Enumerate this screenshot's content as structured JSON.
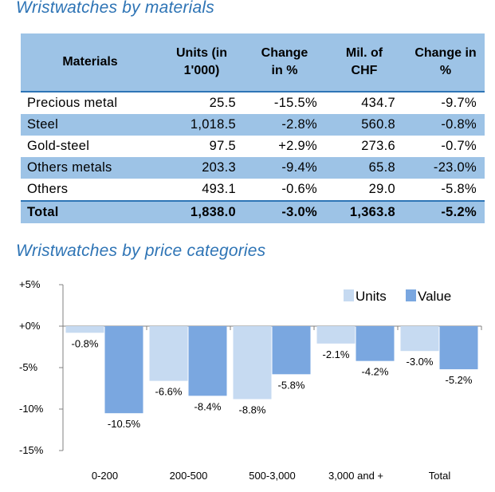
{
  "titles": {
    "materials": "Wristwatches by materials",
    "price": "Wristwatches by price categories"
  },
  "colors": {
    "title": "#2e74b5",
    "header_fill": "#9dc3e6",
    "units": "#c6daf1",
    "value": "#7aa7e0",
    "axis": "#808080"
  },
  "table": {
    "headers": [
      "Materials",
      "Units (in 1'000)",
      "Change in %",
      "Mil. of CHF",
      "Change in %"
    ],
    "rows": [
      [
        "Precious metal",
        "25.5",
        "-15.5%",
        "434.7",
        "-9.7%"
      ],
      [
        "Steel",
        "1,018.5",
        "-2.8%",
        "560.8",
        "-0.8%"
      ],
      [
        "Gold-steel",
        "97.5",
        "+2.9%",
        "273.6",
        "-0.7%"
      ],
      [
        "Others metals",
        "203.3",
        "-9.4%",
        "65.8",
        "-23.0%"
      ],
      [
        "Others",
        "493.1",
        "-0.6%",
        "29.0",
        "-5.8%"
      ]
    ],
    "total": [
      "Total",
      "1,838.0",
      "-3.0%",
      "1,363.8",
      "-5.2%"
    ]
  },
  "chart_data": {
    "type": "bar",
    "title": "Wristwatches by price categories",
    "categories": [
      "0-200",
      "200-500",
      "500-3,000",
      "3,000 and +",
      "Total"
    ],
    "series": [
      {
        "name": "Units",
        "values": [
          -0.8,
          -6.6,
          -8.8,
          -2.1,
          -3.0
        ],
        "color": "#c6daf1"
      },
      {
        "name": "Value",
        "values": [
          -10.5,
          -8.4,
          -5.8,
          -4.2,
          -5.2
        ],
        "color": "#7aa7e0"
      }
    ],
    "ylim": [
      -15,
      5
    ],
    "yticks": [
      5,
      0,
      -5,
      -10,
      -15
    ],
    "ytick_labels": [
      "+5%",
      "+0%",
      "-5%",
      "-10%",
      "-15%"
    ],
    "data_labels": [
      [
        "-0.8%",
        "-6.6%",
        "-8.8%",
        "-2.1%",
        "-3.0%"
      ],
      [
        "-10.5%",
        "-8.4%",
        "-5.8%",
        "-4.2%",
        "-5.2%"
      ]
    ],
    "legend": "top-right",
    "grid": false,
    "xlabel": "",
    "ylabel": ""
  }
}
